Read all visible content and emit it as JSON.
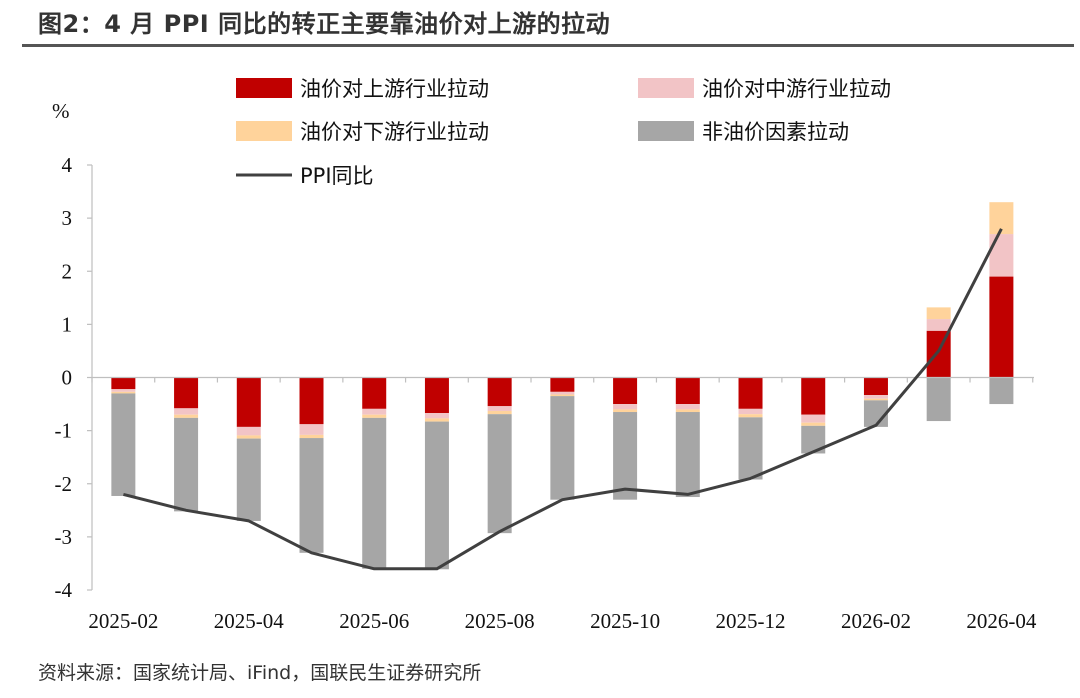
{
  "title": "图2：4 月 PPI 同比的转正主要靠油价对上游的拉动",
  "source": "资料来源：国家统计局、iFind，国联民生证券研究所",
  "chart_data": {
    "type": "bar",
    "stacked": true,
    "ylabel": "%",
    "ylim": [
      -4,
      4
    ],
    "yticks": [
      -4,
      -3,
      -2,
      -1,
      0,
      1,
      2,
      3,
      4
    ],
    "grid": false,
    "categories": [
      "2025-02",
      "2025-03",
      "2025-04",
      "2025-05",
      "2025-06",
      "2025-07",
      "2025-08",
      "2025-09",
      "2025-10",
      "2025-11",
      "2025-12",
      "2026-01",
      "2026-02",
      "2026-03",
      "2026-04"
    ],
    "x_tick_labels": [
      "2025-02",
      "2025-04",
      "2025-06",
      "2025-08",
      "2025-10",
      "2025-12",
      "2026-02",
      "2026-04"
    ],
    "series": [
      {
        "name": "油价对上游行业拉动",
        "color": "#C00000",
        "kind": "bar",
        "values": [
          -0.22,
          -0.58,
          -0.93,
          -0.88,
          -0.59,
          -0.67,
          -0.54,
          -0.27,
          -0.5,
          -0.5,
          -0.59,
          -0.7,
          -0.33,
          0.88,
          1.9
        ]
      },
      {
        "name": "油价对中游行业拉动",
        "color": "#F2C4C6",
        "kind": "bar",
        "values": [
          -0.05,
          -0.12,
          -0.16,
          -0.2,
          -0.11,
          -0.1,
          -0.09,
          -0.05,
          -0.1,
          -0.1,
          -0.1,
          -0.15,
          -0.07,
          0.22,
          0.8
        ]
      },
      {
        "name": "油价对下游行业拉动",
        "color": "#FFD39B",
        "kind": "bar",
        "values": [
          -0.03,
          -0.06,
          -0.06,
          -0.06,
          -0.06,
          -0.06,
          -0.06,
          -0.03,
          -0.05,
          -0.05,
          -0.06,
          -0.06,
          -0.03,
          0.22,
          0.6
        ]
      },
      {
        "name": "非油价因素拉动",
        "color": "#A6A6A6",
        "kind": "bar",
        "values": [
          -1.93,
          -1.76,
          -1.55,
          -2.16,
          -2.84,
          -2.78,
          -2.24,
          -1.95,
          -1.65,
          -1.6,
          -1.17,
          -0.52,
          -0.5,
          -0.82,
          -0.5
        ]
      },
      {
        "name": "PPI同比",
        "color": "#404040",
        "kind": "line",
        "values": [
          -2.2,
          -2.5,
          -2.7,
          -3.3,
          -3.6,
          -3.6,
          -2.9,
          -2.3,
          -2.1,
          -2.2,
          -1.9,
          -1.4,
          -0.9,
          0.5,
          2.8
        ]
      }
    ],
    "legend": "top"
  }
}
